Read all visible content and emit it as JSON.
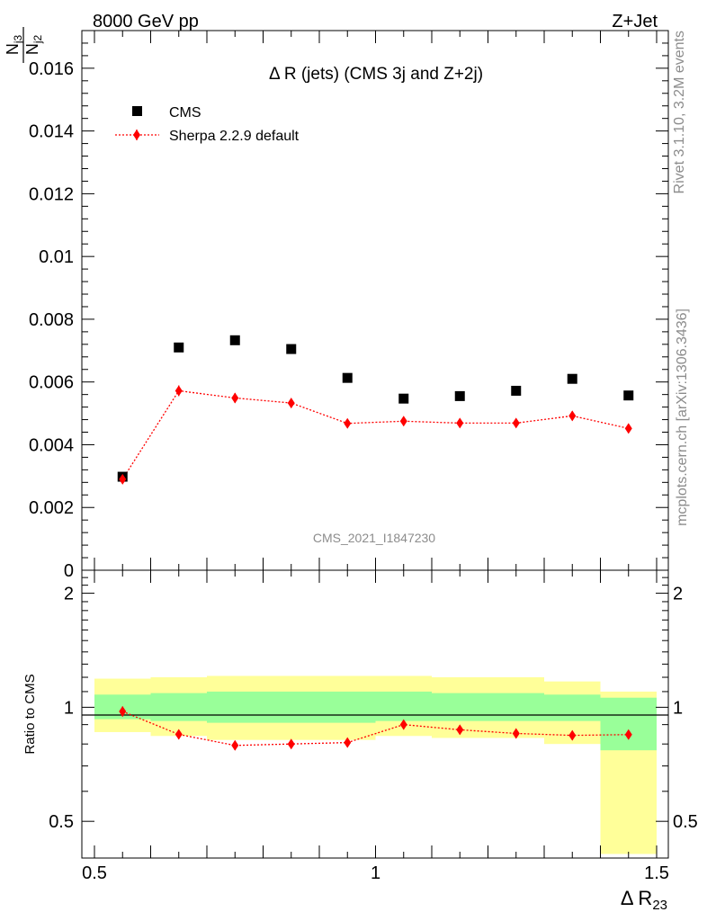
{
  "header": {
    "left_label": "8000 GeV pp",
    "right_label": "Z+Jet"
  },
  "side": {
    "rivet_label": "Rivet 3.1.10,  3.2M events",
    "mcplots_label": "mcplots.cern.ch [arXiv:1306.3436]"
  },
  "watermark": "CMS_2021_I1847230",
  "colors": {
    "data": "#000000",
    "mc": "#ff0000",
    "band_inner": "#99ff99",
    "band_outer": "#ffff99"
  },
  "chart_data": [
    {
      "type": "scatter",
      "title": "Δ R (jets) (CMS 3j and Z+2j)",
      "ylabel_numerator": "N_j3",
      "ylabel_denominator": "N_j2",
      "ylabel_num_main": "N",
      "ylabel_num_sub": "j3",
      "ylabel_den_main": "N",
      "ylabel_den_sub": "j2",
      "xlim": [
        0.5,
        1.5
      ],
      "ylim": [
        0,
        0.0172
      ],
      "yticks": [
        0,
        0.002,
        0.004,
        0.006,
        0.008,
        0.01,
        0.012,
        0.014,
        0.016
      ],
      "ytick_labels": [
        "0",
        "0.002",
        "0.004",
        "0.006",
        "0.008",
        "0.01",
        "0.012",
        "0.014",
        "0.016"
      ],
      "legend": [
        "CMS",
        "Sherpa 2.2.9 default"
      ],
      "legend_position": "top-left",
      "x": [
        0.55,
        0.65,
        0.75,
        0.85,
        0.95,
        1.05,
        1.15,
        1.25,
        1.35,
        1.45
      ],
      "series": [
        {
          "name": "CMS",
          "values": [
            0.00298,
            0.0071,
            0.00733,
            0.00705,
            0.00613,
            0.00547,
            0.00555,
            0.00572,
            0.0061,
            0.00557
          ]
        },
        {
          "name": "Sherpa 2.2.9 default",
          "values": [
            0.0029,
            0.00572,
            0.00549,
            0.00533,
            0.00468,
            0.00475,
            0.00469,
            0.00469,
            0.00492,
            0.00452
          ],
          "errors": [
            0.00011,
            0.00017,
            0.00016,
            0.00015,
            0.00013,
            0.00014,
            0.00014,
            0.00014,
            0.00015,
            0.00013
          ]
        }
      ]
    },
    {
      "type": "line",
      "ylabel": "Ratio to CMS",
      "xlabel_main": "Δ R",
      "xlabel_sub": "23",
      "xlim": [
        0.5,
        1.5
      ],
      "ylim": [
        0.4,
        2.3
      ],
      "yscale": "log",
      "yticks": [
        0.5,
        1,
        2
      ],
      "ytick_labels": [
        "0.5",
        "1",
        "2"
      ],
      "xticks": [
        0.5,
        1,
        1.5
      ],
      "xtick_labels": [
        "0.5",
        "1",
        "1.5"
      ],
      "bin_edges": [
        0.5,
        0.6,
        0.7,
        0.8,
        0.9,
        1.0,
        1.1,
        1.2,
        1.3,
        1.4,
        1.5
      ],
      "band_inner": {
        "low": [
          0.93,
          0.92,
          0.91,
          0.91,
          0.91,
          0.92,
          0.92,
          0.92,
          0.92,
          0.77
        ],
        "high": [
          1.08,
          1.09,
          1.1,
          1.1,
          1.1,
          1.1,
          1.09,
          1.09,
          1.08,
          1.06
        ]
      },
      "band_outer": {
        "low": [
          0.86,
          0.84,
          0.82,
          0.82,
          0.82,
          0.84,
          0.83,
          0.83,
          0.8,
          0.41
        ],
        "high": [
          1.19,
          1.2,
          1.21,
          1.21,
          1.21,
          1.21,
          1.2,
          1.2,
          1.17,
          1.1
        ]
      },
      "x": [
        0.55,
        0.65,
        0.75,
        0.85,
        0.95,
        1.05,
        1.15,
        1.25,
        1.35,
        1.45
      ],
      "series": [
        {
          "name": "Sherpa 2.2.9 default / CMS",
          "values": [
            0.975,
            0.848,
            0.793,
            0.8,
            0.807,
            0.9,
            0.872,
            0.853,
            0.843,
            0.847
          ],
          "errors": [
            0.03,
            0.024,
            0.022,
            0.021,
            0.022,
            0.025,
            0.024,
            0.024,
            0.023,
            0.023
          ]
        }
      ]
    }
  ]
}
